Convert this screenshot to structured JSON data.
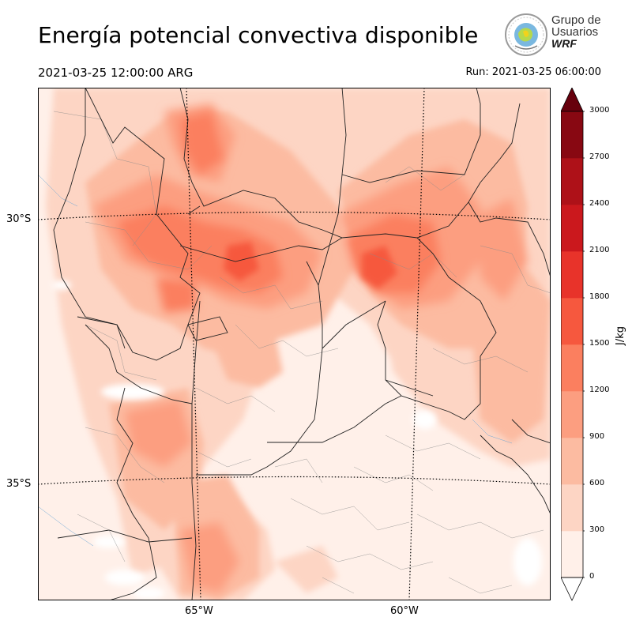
{
  "header": {
    "title": "Energía potencial convectiva disponible",
    "valid_time": "2021-03-25 12:00:00 ARG",
    "run_time": "Run: 2021-03-25 06:00:00"
  },
  "logo": {
    "line1": "Grupo de",
    "line2": "Usuarios",
    "line3": "WRF"
  },
  "map": {
    "lat_labels": [
      "30°S",
      "35°S"
    ],
    "lon_labels": [
      "65°W",
      "60°W"
    ]
  },
  "colorbar": {
    "unit": "J/kg",
    "ticks": [
      "0",
      "300",
      "600",
      "900",
      "1200",
      "1500",
      "1800",
      "2100",
      "2400",
      "2700",
      "3000"
    ],
    "colors": [
      "#fff0e9",
      "#fdd5c4",
      "#fcbba1",
      "#fc9e80",
      "#fb7f5f",
      "#f6583e",
      "#e8332a",
      "#cb181d",
      "#ae1118",
      "#880812"
    ],
    "extend_top_color": "#67000d"
  }
}
